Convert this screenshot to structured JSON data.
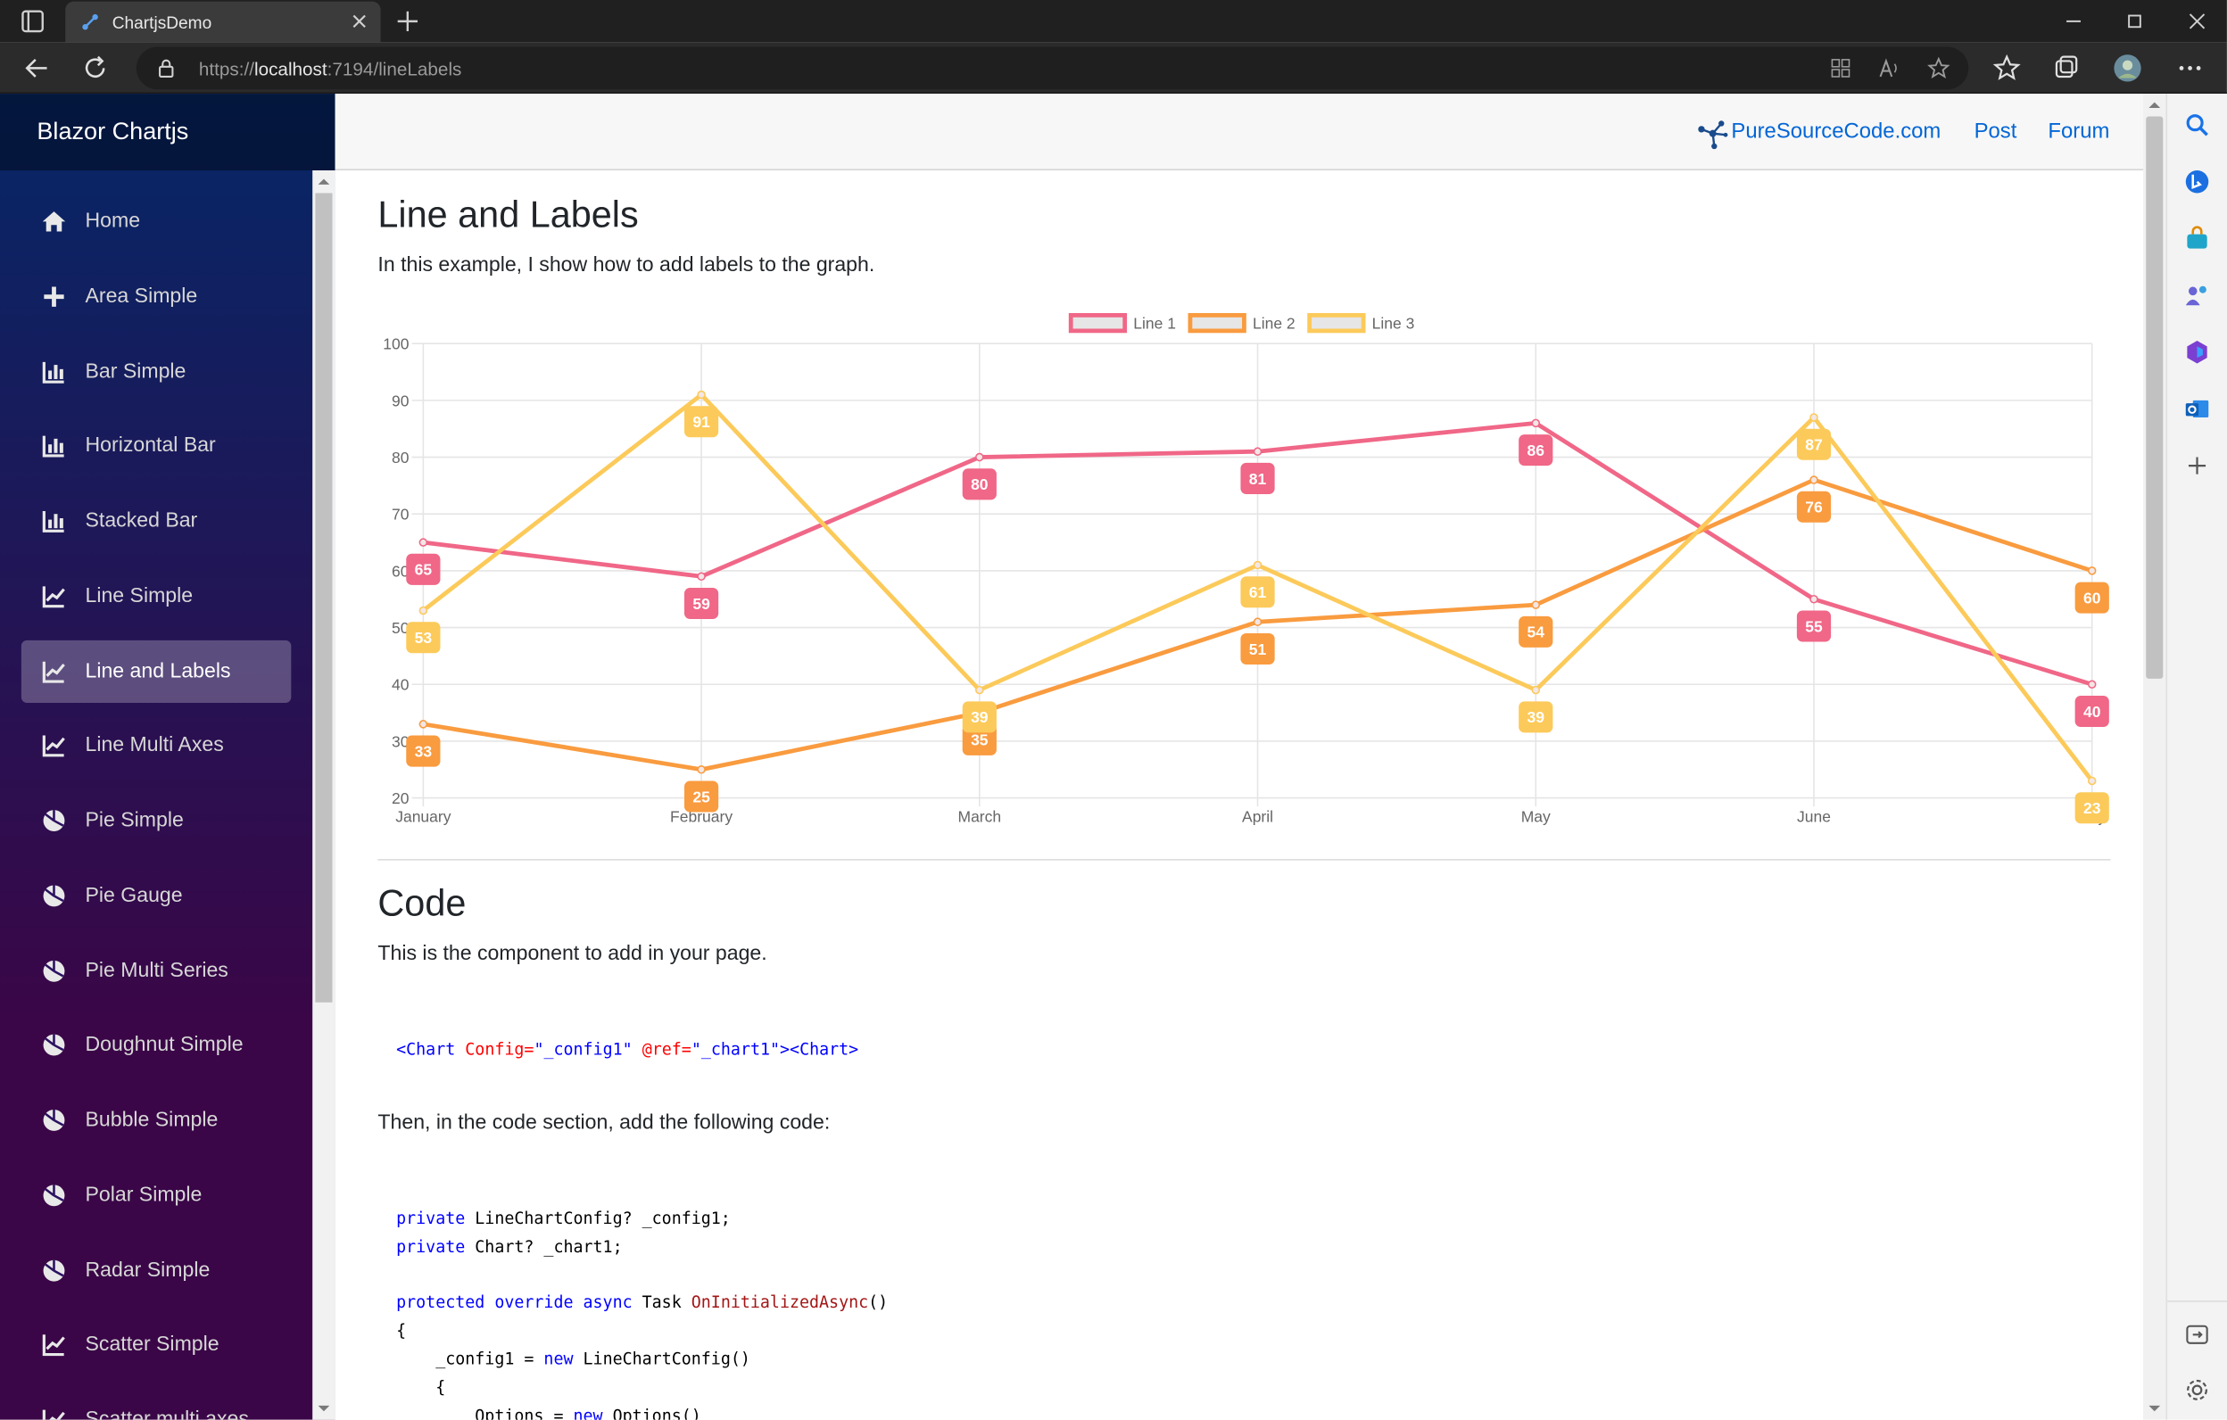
{
  "browser": {
    "tab_title": "ChartjsDemo",
    "url_scheme": "https://",
    "url_host": "localhost",
    "url_rest": ":7194/lineLabels",
    "icons": [
      "tab-actions-icon",
      "close-icon",
      "plus-icon",
      "minimize-icon",
      "maximize-icon",
      "close-window-icon",
      "back-icon",
      "refresh-icon",
      "lock-icon",
      "apps-icon",
      "read-aloud-icon",
      "add-favorite-icon",
      "favorites-icon",
      "collections-icon",
      "profile-avatar",
      "more-icon"
    ]
  },
  "edge_sidebar": {
    "icons": [
      "search-icon",
      "bing-icon",
      "shopping-icon",
      "games-icon",
      "office-icon",
      "outlook-icon",
      "add-icon",
      "sidebar-toggle-icon",
      "settings-icon"
    ]
  },
  "sidebar": {
    "brand": "Blazor Chartjs",
    "items": [
      {
        "label": "Home",
        "icon": "home-icon"
      },
      {
        "label": "Area Simple",
        "icon": "plus-icon"
      },
      {
        "label": "Bar Simple",
        "icon": "bar-chart-icon"
      },
      {
        "label": "Horizontal Bar",
        "icon": "bar-chart-icon"
      },
      {
        "label": "Stacked Bar",
        "icon": "bar-chart-icon"
      },
      {
        "label": "Line Simple",
        "icon": "line-chart-icon"
      },
      {
        "label": "Line and Labels",
        "icon": "line-chart-icon",
        "active": true
      },
      {
        "label": "Line Multi Axes",
        "icon": "line-chart-icon"
      },
      {
        "label": "Pie Simple",
        "icon": "pie-chart-icon"
      },
      {
        "label": "Pie Gauge",
        "icon": "pie-chart-icon"
      },
      {
        "label": "Pie Multi Series",
        "icon": "pie-chart-icon"
      },
      {
        "label": "Doughnut Simple",
        "icon": "pie-chart-icon"
      },
      {
        "label": "Bubble Simple",
        "icon": "pie-chart-icon"
      },
      {
        "label": "Polar Simple",
        "icon": "pie-chart-icon"
      },
      {
        "label": "Radar Simple",
        "icon": "pie-chart-icon"
      },
      {
        "label": "Scatter Simple",
        "icon": "line-chart-icon"
      },
      {
        "label": "Scatter multi axes",
        "icon": "line-chart-icon"
      }
    ]
  },
  "topbar": {
    "site": "PureSourceCode.com",
    "post": "Post",
    "forum": "Forum"
  },
  "page": {
    "title": "Line and Labels",
    "intro": "In this example, I show how to add labels to the graph.",
    "code_title": "Code",
    "code_intro": "This is the component to add in your page.",
    "code_snippet_1": {
      "tag_open": "<Chart",
      "attr1": "Config=",
      "val1": "\"_config1\"",
      "attr2": "@ref=",
      "val2": "\"_chart1\"",
      "tag_close": "><Chart>"
    },
    "code_section_intro": "Then, in the code section, add the following code:",
    "code_lines": {
      "l1_kw": "private",
      "l1_rest": " LineChartConfig? _config1;",
      "l2_kw": "private",
      "l2_rest": " Chart? _chart1;",
      "l3_kw": "protected override async",
      "l3_type": " Task ",
      "l3_method": "OnInitializedAsync",
      "l3_end": "()",
      "l4": "{",
      "l5_a": "    _config1 = ",
      "l5_kw": "new",
      "l5_b": " LineChartConfig()",
      "l6": "    {",
      "l7_a": "        Options = ",
      "l7_kw": "new",
      "l7_b": " Options()"
    }
  },
  "colors": {
    "line1": "#f06787",
    "line2": "#f99b3f",
    "line3": "#fcca5a",
    "link": "#0366d6",
    "sidebar_top": "#052767",
    "sidebar_bottom": "#3a0647"
  },
  "chart_data": {
    "type": "line",
    "categories": [
      "January",
      "February",
      "March",
      "April",
      "May",
      "June",
      "July"
    ],
    "series": [
      {
        "name": "Line 1",
        "color": "#f06787",
        "values": [
          65,
          59,
          80,
          81,
          86,
          55,
          40
        ]
      },
      {
        "name": "Line 2",
        "color": "#f99b3f",
        "values": [
          33,
          25,
          35,
          51,
          54,
          76,
          60
        ]
      },
      {
        "name": "Line 3",
        "color": "#fcca5a",
        "values": [
          53,
          91,
          39,
          61,
          39,
          87,
          23
        ]
      }
    ],
    "ylim": [
      20,
      100
    ],
    "yticks": [
      20,
      30,
      40,
      50,
      60,
      70,
      80,
      90,
      100
    ],
    "data_labels": true,
    "legend": "top",
    "grid": true
  }
}
